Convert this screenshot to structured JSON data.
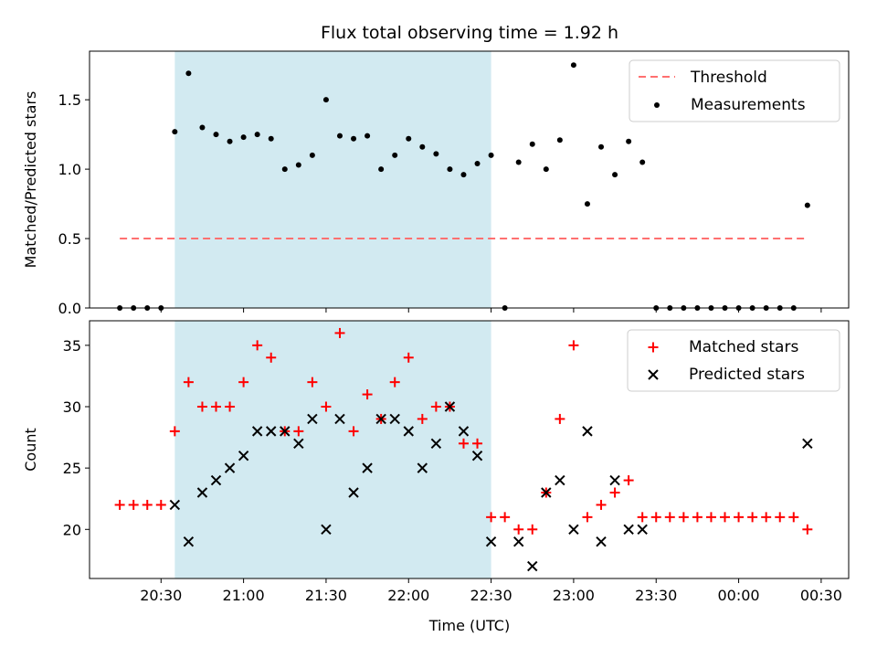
{
  "chart_data": {
    "title": "Flux total observing time = 1.92 h",
    "xlabel": "Time (UTC)",
    "x_unit": "time of day (UTC), HH:MM; times after 24:00 are past midnight",
    "x_range": [
      "20:04",
      "24:40"
    ],
    "x_tick_labels": [
      "20:30",
      "21:00",
      "21:30",
      "22:00",
      "22:30",
      "23:00",
      "23:30",
      "00:00",
      "00:30"
    ],
    "x_ticks": [
      "20:30",
      "21:00",
      "21:30",
      "22:00",
      "22:30",
      "23:00",
      "23:30",
      "24:00",
      "24:30"
    ],
    "shaded_interval": {
      "start": "20:35",
      "end": "22:30",
      "color": "#add8e6"
    },
    "panels": [
      {
        "type": "scatter",
        "ylabel": "Matched/Predicted stars",
        "ylim": [
          0,
          1.85
        ],
        "yticks": [
          0.0,
          0.5,
          1.0,
          1.5
        ],
        "ytick_labels": [
          "0.0",
          "0.5",
          "1.0",
          "1.5"
        ],
        "legend_position": "top-right",
        "threshold": {
          "name": "Threshold",
          "value": 0.5,
          "x_start": "20:15",
          "x_end": "24:25",
          "color": "#ff7070"
        },
        "series": [
          {
            "name": "Measurements",
            "color": "#000000",
            "marker": "dot",
            "x": [
              "20:15",
              "20:20",
              "20:25",
              "20:30",
              "20:35",
              "20:40",
              "20:45",
              "20:50",
              "20:55",
              "21:00",
              "21:05",
              "21:10",
              "21:15",
              "21:20",
              "21:25",
              "21:30",
              "21:35",
              "21:40",
              "21:45",
              "21:50",
              "21:55",
              "22:00",
              "22:05",
              "22:10",
              "22:15",
              "22:20",
              "22:25",
              "22:30",
              "22:35",
              "22:40",
              "22:45",
              "22:50",
              "22:55",
              "23:00",
              "23:05",
              "23:10",
              "23:15",
              "23:20",
              "23:25",
              "23:30",
              "23:35",
              "23:40",
              "23:45",
              "23:50",
              "23:55",
              "24:00",
              "24:05",
              "24:10",
              "24:15",
              "24:20",
              "24:25"
            ],
            "y": [
              0,
              0,
              0,
              0,
              1.27,
              1.69,
              1.3,
              1.25,
              1.2,
              1.23,
              1.25,
              1.22,
              1.0,
              1.03,
              1.1,
              1.5,
              1.24,
              1.22,
              1.24,
              1.0,
              1.1,
              1.22,
              1.16,
              1.11,
              1.0,
              0.96,
              1.04,
              1.1,
              0,
              1.05,
              1.18,
              1.0,
              1.21,
              1.75,
              0.75,
              1.16,
              0.96,
              1.2,
              1.05,
              0,
              0,
              0,
              0,
              0,
              0,
              0,
              0,
              0,
              0,
              0,
              0.74
            ]
          }
        ]
      },
      {
        "type": "scatter",
        "ylabel": "Count",
        "ylim": [
          16,
          37
        ],
        "yticks": [
          20,
          25,
          30,
          35
        ],
        "ytick_labels": [
          "20",
          "25",
          "30",
          "35"
        ],
        "legend_position": "top-right",
        "series": [
          {
            "name": "Matched stars",
            "color": "#ff0000",
            "marker": "plus",
            "x": [
              "20:15",
              "20:20",
              "20:25",
              "20:30",
              "20:35",
              "20:40",
              "20:45",
              "20:50",
              "20:55",
              "21:00",
              "21:05",
              "21:10",
              "21:15",
              "21:20",
              "21:25",
              "21:30",
              "21:35",
              "21:40",
              "21:45",
              "21:50",
              "21:55",
              "22:00",
              "22:05",
              "22:10",
              "22:15",
              "22:20",
              "22:25",
              "22:30",
              "22:35",
              "22:40",
              "22:45",
              "22:50",
              "22:55",
              "23:00",
              "23:05",
              "23:10",
              "23:15",
              "23:20",
              "23:25",
              "23:30",
              "23:35",
              "23:40",
              "23:45",
              "23:50",
              "23:55",
              "24:00",
              "24:05",
              "24:10",
              "24:15",
              "24:20",
              "24:25"
            ],
            "y": [
              22,
              22,
              22,
              22,
              28,
              32,
              30,
              30,
              30,
              32,
              35,
              34,
              28,
              28,
              32,
              30,
              36,
              28,
              31,
              29,
              32,
              34,
              29,
              30,
              30,
              27,
              27,
              21,
              21,
              20,
              20,
              23,
              29,
              35,
              21,
              22,
              23,
              24,
              21,
              21,
              21,
              21,
              21,
              21,
              21,
              21,
              21,
              21,
              21,
              21,
              20
            ]
          },
          {
            "name": "Predicted stars",
            "color": "#000000",
            "marker": "x",
            "x": [
              "20:35",
              "20:40",
              "20:45",
              "20:50",
              "20:55",
              "21:00",
              "21:05",
              "21:10",
              "21:15",
              "21:20",
              "21:25",
              "21:30",
              "21:35",
              "21:40",
              "21:45",
              "21:50",
              "21:55",
              "22:00",
              "22:05",
              "22:10",
              "22:15",
              "22:20",
              "22:25",
              "22:30",
              "22:40",
              "22:45",
              "22:50",
              "22:55",
              "23:00",
              "23:05",
              "23:10",
              "23:15",
              "23:20",
              "23:25",
              "24:25"
            ],
            "y": [
              22,
              19,
              23,
              24,
              25,
              26,
              28,
              28,
              28,
              27,
              29,
              20,
              29,
              23,
              25,
              29,
              29,
              28,
              25,
              27,
              30,
              28,
              26,
              19,
              19,
              17,
              23,
              24,
              20,
              28,
              19,
              24,
              20,
              20,
              27
            ]
          }
        ]
      }
    ]
  }
}
